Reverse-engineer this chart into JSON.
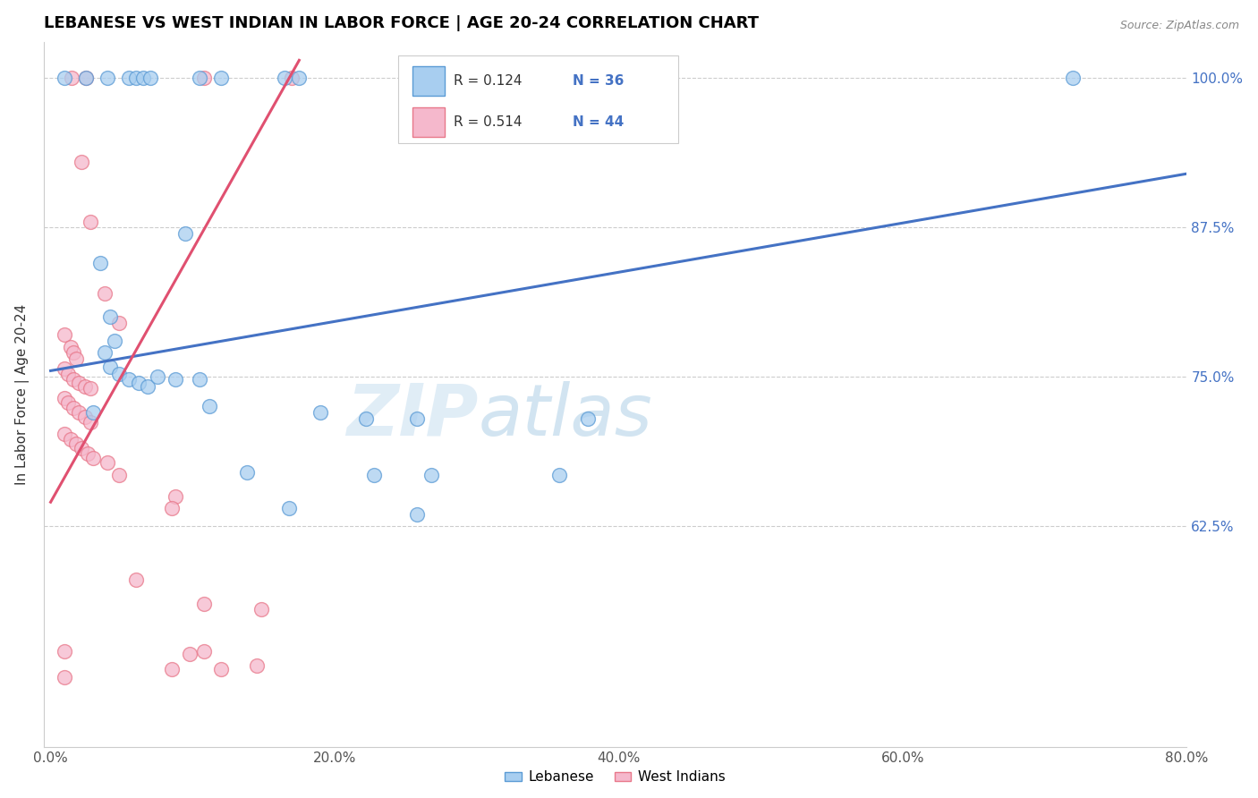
{
  "title": "LEBANESE VS WEST INDIAN IN LABOR FORCE | AGE 20-24 CORRELATION CHART",
  "source": "Source: ZipAtlas.com",
  "ylabel": "In Labor Force | Age 20-24",
  "x_tick_labels": [
    "0.0%",
    "20.0%",
    "40.0%",
    "60.0%",
    "80.0%"
  ],
  "x_tick_vals": [
    0.0,
    0.2,
    0.4,
    0.6,
    0.8
  ],
  "y_tick_labels": [
    "62.5%",
    "75.0%",
    "87.5%",
    "100.0%"
  ],
  "y_tick_vals": [
    0.625,
    0.75,
    0.875,
    1.0
  ],
  "xlim": [
    -0.005,
    0.8
  ],
  "ylim": [
    0.44,
    1.03
  ],
  "legend_label1": "Lebanese",
  "legend_label2": "West Indians",
  "watermark_zip": "ZIP",
  "watermark_atlas": "atlas",
  "blue_color": "#a8cef0",
  "pink_color": "#f5b8cc",
  "blue_edge_color": "#5b9bd5",
  "pink_edge_color": "#e8788a",
  "blue_line_color": "#4472c4",
  "pink_line_color": "#e05070",
  "legend_r_color": "#4472c4",
  "legend_n_color": "#e05070",
  "blue_points": [
    [
      0.01,
      1.0
    ],
    [
      0.025,
      1.0
    ],
    [
      0.04,
      1.0
    ],
    [
      0.055,
      1.0
    ],
    [
      0.06,
      1.0
    ],
    [
      0.065,
      1.0
    ],
    [
      0.07,
      1.0
    ],
    [
      0.105,
      1.0
    ],
    [
      0.12,
      1.0
    ],
    [
      0.165,
      1.0
    ],
    [
      0.175,
      1.0
    ],
    [
      0.72,
      1.0
    ],
    [
      0.095,
      0.87
    ],
    [
      0.035,
      0.845
    ],
    [
      0.042,
      0.8
    ],
    [
      0.045,
      0.78
    ],
    [
      0.038,
      0.77
    ],
    [
      0.042,
      0.758
    ],
    [
      0.048,
      0.752
    ],
    [
      0.055,
      0.748
    ],
    [
      0.062,
      0.745
    ],
    [
      0.068,
      0.742
    ],
    [
      0.075,
      0.75
    ],
    [
      0.088,
      0.748
    ],
    [
      0.105,
      0.748
    ],
    [
      0.03,
      0.72
    ],
    [
      0.112,
      0.725
    ],
    [
      0.19,
      0.72
    ],
    [
      0.222,
      0.715
    ],
    [
      0.258,
      0.715
    ],
    [
      0.378,
      0.715
    ],
    [
      0.138,
      0.67
    ],
    [
      0.228,
      0.668
    ],
    [
      0.268,
      0.668
    ],
    [
      0.358,
      0.668
    ],
    [
      0.168,
      0.64
    ],
    [
      0.258,
      0.635
    ]
  ],
  "pink_points": [
    [
      0.015,
      1.0
    ],
    [
      0.025,
      1.0
    ],
    [
      0.108,
      1.0
    ],
    [
      0.17,
      1.0
    ],
    [
      0.022,
      0.93
    ],
    [
      0.028,
      0.88
    ],
    [
      0.038,
      0.82
    ],
    [
      0.048,
      0.795
    ],
    [
      0.01,
      0.785
    ],
    [
      0.014,
      0.775
    ],
    [
      0.016,
      0.77
    ],
    [
      0.018,
      0.765
    ],
    [
      0.01,
      0.757
    ],
    [
      0.012,
      0.752
    ],
    [
      0.016,
      0.748
    ],
    [
      0.02,
      0.745
    ],
    [
      0.024,
      0.742
    ],
    [
      0.028,
      0.74
    ],
    [
      0.01,
      0.732
    ],
    [
      0.012,
      0.728
    ],
    [
      0.016,
      0.724
    ],
    [
      0.02,
      0.72
    ],
    [
      0.024,
      0.716
    ],
    [
      0.028,
      0.712
    ],
    [
      0.01,
      0.702
    ],
    [
      0.014,
      0.698
    ],
    [
      0.018,
      0.694
    ],
    [
      0.022,
      0.69
    ],
    [
      0.026,
      0.686
    ],
    [
      0.03,
      0.682
    ],
    [
      0.04,
      0.678
    ],
    [
      0.048,
      0.668
    ],
    [
      0.088,
      0.65
    ],
    [
      0.085,
      0.64
    ],
    [
      0.06,
      0.58
    ],
    [
      0.108,
      0.56
    ],
    [
      0.148,
      0.555
    ],
    [
      0.01,
      0.52
    ],
    [
      0.098,
      0.518
    ],
    [
      0.108,
      0.52
    ],
    [
      0.01,
      0.498
    ],
    [
      0.085,
      0.505
    ],
    [
      0.12,
      0.505
    ],
    [
      0.145,
      0.508
    ]
  ],
  "blue_line_x": [
    0.0,
    0.8
  ],
  "blue_line_y": [
    0.755,
    0.92
  ],
  "pink_line_x": [
    0.0,
    0.175
  ],
  "pink_line_y": [
    0.645,
    1.015
  ]
}
